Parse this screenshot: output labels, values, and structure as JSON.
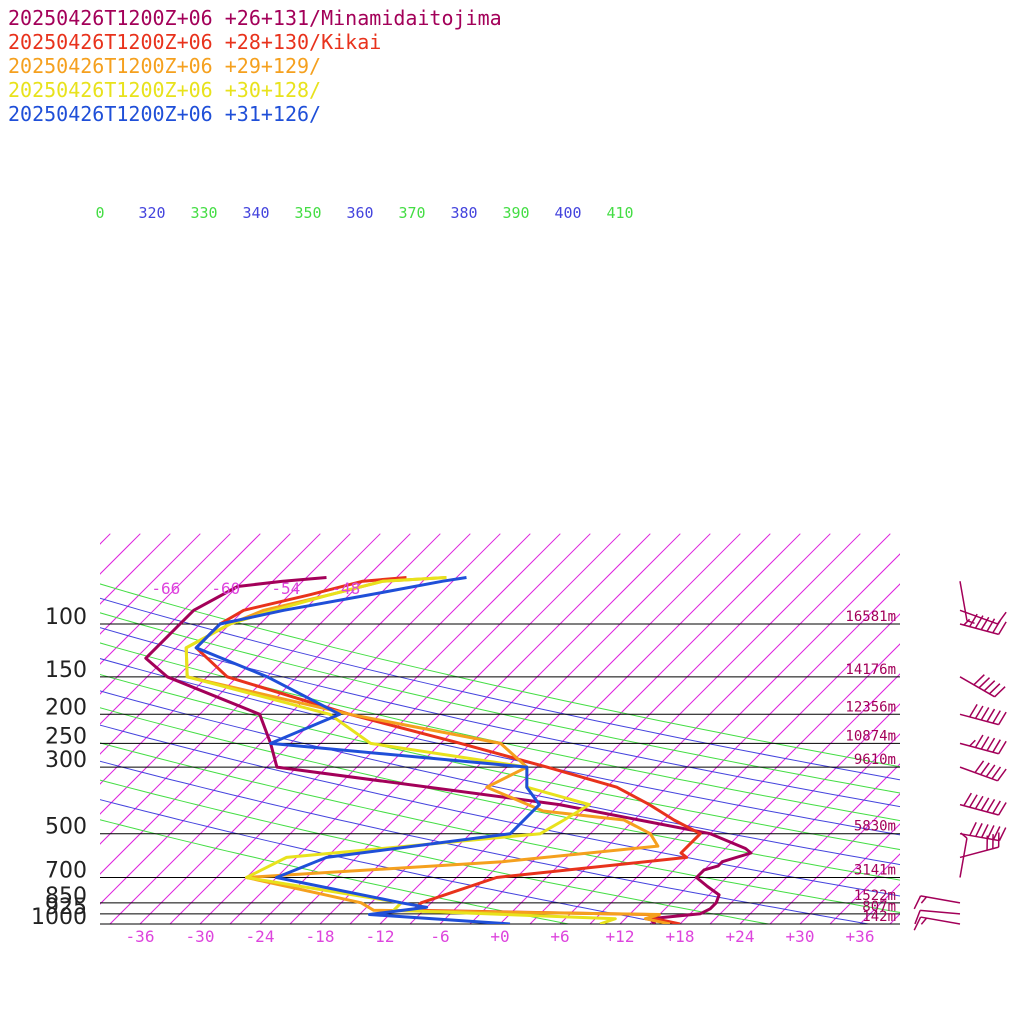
{
  "legend": {
    "items": [
      {
        "label": "20250426T1200Z+06 +26+131/Minamidaitojima",
        "color": "#a30059"
      },
      {
        "label": "20250426T1200Z+06 +28+130/Kikai",
        "color": "#e8321c"
      },
      {
        "label": "20250426T1200Z+06 +29+129/",
        "color": "#f5a01e"
      },
      {
        "label": "20250426T1200Z+06 +30+128/",
        "color": "#e8e21c"
      },
      {
        "label": "20250426T1200Z+06 +31+126/",
        "color": "#1f4fd8"
      }
    ]
  },
  "chart_data": {
    "type": "line",
    "subtype": "skew-T log-p diagram",
    "yscale": "log-pressure",
    "ylim": [
      1000,
      70
    ],
    "xlim": [
      -40,
      40
    ],
    "pressure_levels": [
      {
        "label": "100",
        "p": 100,
        "height": "16581m"
      },
      {
        "label": "150",
        "p": 150,
        "height": "14176m"
      },
      {
        "label": "200",
        "p": 200,
        "height": "12356m"
      },
      {
        "label": "250",
        "p": 250,
        "height": "10874m"
      },
      {
        "label": "300",
        "p": 300,
        "height": "9610m"
      },
      {
        "label": "500",
        "p": 500,
        "height": "5830m"
      },
      {
        "label": "700",
        "p": 700,
        "height": "3141m"
      },
      {
        "label": "850",
        "p": 850,
        "height": "1522m"
      },
      {
        "label": "925",
        "p": 925,
        "height": "807m"
      },
      {
        "label": "1000",
        "p": 1000,
        "height": "142m"
      }
    ],
    "x_ticks": [
      "-36",
      "-30",
      "-24",
      "-18",
      "-12",
      "-6",
      "+0",
      "+6",
      "+12",
      "+18",
      "+24",
      "+30",
      "+36"
    ],
    "top_isotherm_labels": [
      "-66",
      "-60",
      "-54",
      "-48"
    ],
    "theta_labels": [
      {
        "label": "0",
        "color": "#44dd44"
      },
      {
        "label": "320",
        "color": "#4444dd"
      },
      {
        "label": "330",
        "color": "#44dd44"
      },
      {
        "label": "340",
        "color": "#4444dd"
      },
      {
        "label": "350",
        "color": "#44dd44"
      },
      {
        "label": "360",
        "color": "#4444dd"
      },
      {
        "label": "370",
        "color": "#44dd44"
      },
      {
        "label": "380",
        "color": "#4444dd"
      },
      {
        "label": "390",
        "color": "#44dd44"
      },
      {
        "label": "400",
        "color": "#4444dd"
      },
      {
        "label": "410",
        "color": "#44dd44"
      }
    ],
    "colors": {
      "isotherm": "#dd22dd",
      "isobar": "#000000",
      "theta_a": "#44dd44",
      "theta_b": "#4444dd",
      "axis_label": "#dd44dd",
      "height_label": "#a30059",
      "barb": "#a30059"
    },
    "series": [
      {
        "name": "20250426T1200Z+06 +26+131/Minamidaitojima",
        "color": "#a30059",
        "points": [
          [
            1000,
            15.5
          ],
          [
            960,
            14.5
          ],
          [
            925,
            19
          ],
          [
            890,
            19.5
          ],
          [
            850,
            19.5
          ],
          [
            800,
            19
          ],
          [
            750,
            17
          ],
          [
            700,
            15
          ],
          [
            660,
            15
          ],
          [
            640,
            16
          ],
          [
            620,
            16
          ],
          [
            580,
            18
          ],
          [
            560,
            17
          ],
          [
            500,
            12
          ],
          [
            400,
            -6
          ],
          [
            300,
            -38
          ],
          [
            250,
            -41
          ],
          [
            200,
            -45
          ],
          [
            150,
            -58
          ],
          [
            130,
            -62
          ],
          [
            110,
            -62
          ],
          [
            100,
            -62
          ],
          [
            90,
            -62
          ],
          [
            75,
            -60
          ],
          [
            72,
            -56
          ],
          [
            70,
            -52
          ]
        ]
      },
      {
        "name": "20250426T1200Z+06 +28+130/Kikai",
        "color": "#e8321c",
        "points": [
          [
            1000,
            18
          ],
          [
            960,
            15
          ],
          [
            930,
            14
          ],
          [
            900,
            -10
          ],
          [
            850,
            -10
          ],
          [
            700,
            -5
          ],
          [
            600,
            12
          ],
          [
            580,
            11
          ],
          [
            550,
            11
          ],
          [
            500,
            11
          ],
          [
            450,
            7
          ],
          [
            400,
            3
          ],
          [
            350,
            -2
          ],
          [
            300,
            -11
          ],
          [
            250,
            -22
          ],
          [
            200,
            -36
          ],
          [
            150,
            -52
          ],
          [
            120,
            -58
          ],
          [
            100,
            -58
          ],
          [
            90,
            -57
          ],
          [
            80,
            -52
          ],
          [
            72,
            -48
          ],
          [
            70,
            -44
          ]
        ]
      },
      {
        "name": "20250426T1200Z+06 +29+129/",
        "color": "#f5a01e",
        "points": [
          [
            1000,
            17
          ],
          [
            960,
            14
          ],
          [
            930,
            15
          ],
          [
            900,
            -14
          ],
          [
            850,
            -16
          ],
          [
            700,
            -30
          ],
          [
            620,
            -6
          ],
          [
            550,
            8
          ],
          [
            500,
            6
          ],
          [
            450,
            2
          ],
          [
            420,
            -7
          ],
          [
            350,
            -15
          ],
          [
            300,
            -13
          ],
          [
            250,
            -18
          ],
          [
            200,
            -36
          ],
          [
            150,
            -56
          ],
          [
            120,
            -59
          ],
          [
            100,
            -57
          ],
          [
            90,
            -55
          ],
          [
            80,
            -50
          ],
          [
            72,
            -46
          ],
          [
            70,
            -40
          ]
        ]
      },
      {
        "name": "20250426T1200Z+06 +30+128/",
        "color": "#e8e21c",
        "points": [
          [
            1000,
            10
          ],
          [
            960,
            11
          ],
          [
            900,
            -12
          ],
          [
            850,
            -12
          ],
          [
            700,
            -30
          ],
          [
            600,
            -28
          ],
          [
            500,
            -5
          ],
          [
            450,
            -4
          ],
          [
            400,
            -3
          ],
          [
            350,
            -11
          ],
          [
            300,
            -13
          ],
          [
            250,
            -31
          ],
          [
            200,
            -38
          ],
          [
            150,
            -56
          ],
          [
            120,
            -59
          ],
          [
            100,
            -57
          ],
          [
            90,
            -54
          ],
          [
            80,
            -50
          ],
          [
            72,
            -46
          ],
          [
            70,
            -40
          ]
        ]
      },
      {
        "name": "20250426T1200Z+06 +31+126/",
        "color": "#1f4fd8",
        "points": [
          [
            1000,
            1
          ],
          [
            930,
            -14
          ],
          [
            880,
            -9
          ],
          [
            850,
            -12
          ],
          [
            700,
            -27
          ],
          [
            600,
            -24
          ],
          [
            500,
            -8
          ],
          [
            400,
            -8
          ],
          [
            350,
            -11
          ],
          [
            300,
            -13
          ],
          [
            250,
            -41
          ],
          [
            200,
            -37
          ],
          [
            150,
            -48
          ],
          [
            120,
            -58
          ],
          [
            100,
            -58
          ],
          [
            90,
            -53
          ],
          [
            80,
            -46
          ],
          [
            72,
            -40
          ],
          [
            70,
            -38
          ]
        ]
      }
    ],
    "wind_barbs": [
      {
        "p": 72,
        "dir": 350,
        "kt": 5
      },
      {
        "p": 90,
        "dir": 290,
        "kt": 10
      },
      {
        "p": 100,
        "dir": 285,
        "kt": 65
      },
      {
        "p": 150,
        "dir": 300,
        "kt": 50
      },
      {
        "p": 200,
        "dir": 285,
        "kt": 60
      },
      {
        "p": 250,
        "dir": 285,
        "kt": 55
      },
      {
        "p": 300,
        "dir": 290,
        "kt": 50
      },
      {
        "p": 400,
        "dir": 285,
        "kt": 70
      },
      {
        "p": 500,
        "dir": 280,
        "kt": 60
      },
      {
        "p": 600,
        "dir": 255,
        "kt": 30
      },
      {
        "p": 700,
        "dir": 190,
        "kt": 5
      },
      {
        "p": 850,
        "dir": 100,
        "kt": 15
      },
      {
        "p": 925,
        "dir": 95,
        "kt": 10
      },
      {
        "p": 1000,
        "dir": 100,
        "kt": 15
      }
    ]
  }
}
